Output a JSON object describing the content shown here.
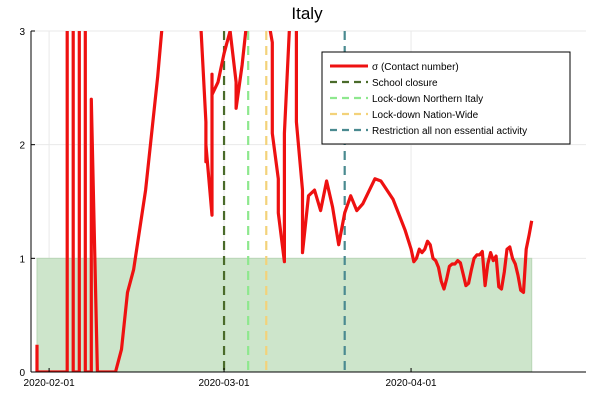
{
  "chart_data": {
    "type": "line",
    "title": "Italy",
    "xlabel": "",
    "ylabel": "",
    "x_domain": [
      "2020-01-29",
      "2020-04-30"
    ],
    "ylim": [
      0,
      3
    ],
    "y_ticks": [
      0,
      1,
      2,
      3
    ],
    "x_ticks": [
      {
        "date": "2020-02-01",
        "label": "2020-02-01"
      },
      {
        "date": "2020-03-01",
        "label": "2020-03-01"
      },
      {
        "date": "2020-04-01",
        "label": "2020-04-01"
      }
    ],
    "grid": true,
    "legend_position": "top-right",
    "threshold_band": {
      "from": 0,
      "to": 1,
      "x_from": "2020-01-30",
      "x_to": "2020-04-21",
      "color": "#cde5cb"
    },
    "series": [
      {
        "name": "σ (Contact number)",
        "color": "#ee1111",
        "style": "solid",
        "points": [
          [
            "2020-01-30",
            0.24
          ],
          [
            "2020-01-30",
            0.0
          ],
          [
            "2020-02-04",
            0.0
          ],
          [
            "2020-02-04",
            3.2
          ],
          [
            "2020-02-05",
            3.2
          ],
          [
            "2020-02-05",
            0.0
          ],
          [
            "2020-02-06",
            0.0
          ],
          [
            "2020-02-06",
            3.2
          ],
          [
            "2020-02-07",
            3.2
          ],
          [
            "2020-02-07",
            0.0
          ],
          [
            "2020-02-08",
            0.0
          ],
          [
            "2020-02-08",
            2.4
          ],
          [
            "2020-02-09",
            0.0
          ],
          [
            "2020-02-12",
            0.0
          ],
          [
            "2020-02-13",
            0.2
          ],
          [
            "2020-02-14",
            0.7
          ],
          [
            "2020-02-15",
            0.9
          ],
          [
            "2020-02-17",
            1.6
          ],
          [
            "2020-02-19",
            2.6
          ],
          [
            "2020-02-20",
            3.2
          ],
          [
            "2020-02-26",
            3.2
          ],
          [
            "2020-02-27",
            2.2
          ],
          [
            "2020-02-27",
            1.85
          ],
          [
            "2020-02-27",
            2.0
          ],
          [
            "2020-02-28",
            1.38
          ],
          [
            "2020-02-28",
            2.62
          ],
          [
            "2020-02-28",
            2.44
          ],
          [
            "2020-02-29",
            2.55
          ],
          [
            "2020-03-01",
            2.8
          ],
          [
            "2020-03-02",
            3.0
          ],
          [
            "2020-03-03",
            2.55
          ],
          [
            "2020-03-03",
            2.32
          ],
          [
            "2020-03-04",
            2.7
          ],
          [
            "2020-03-05",
            3.2
          ],
          [
            "2020-03-08",
            3.2
          ],
          [
            "2020-03-09",
            2.9
          ],
          [
            "2020-03-09",
            2.1
          ],
          [
            "2020-03-10",
            1.7
          ],
          [
            "2020-03-10",
            1.4
          ],
          [
            "2020-03-11",
            0.97
          ],
          [
            "2020-03-11",
            2.1
          ],
          [
            "2020-03-12",
            3.2
          ],
          [
            "2020-03-13",
            3.2
          ],
          [
            "2020-03-13",
            2.2
          ],
          [
            "2020-03-14",
            1.6
          ],
          [
            "2020-03-14",
            1.05
          ],
          [
            "2020-03-15",
            1.55
          ],
          [
            "2020-03-16",
            1.6
          ],
          [
            "2020-03-17",
            1.42
          ],
          [
            "2020-03-18",
            1.68
          ],
          [
            "2020-03-19",
            1.45
          ],
          [
            "2020-03-20",
            1.12
          ],
          [
            "2020-03-21",
            1.4
          ],
          [
            "2020-03-22",
            1.55
          ],
          [
            "2020-03-23",
            1.42
          ],
          [
            "2020-03-24",
            1.48
          ],
          [
            "2020-03-26",
            1.7
          ],
          [
            "2020-03-27",
            1.68
          ],
          [
            "2020-03-29",
            1.52
          ],
          [
            "2020-03-31",
            1.25
          ],
          [
            "2020-04-01",
            1.08
          ],
          [
            "2020-04-02",
            0.97
          ],
          [
            "2020-04-03",
            1.0
          ],
          [
            "2020-04-04",
            1.08
          ],
          [
            "2020-04-05",
            1.05
          ],
          [
            "2020-04-06",
            1.08
          ],
          [
            "2020-04-07",
            1.15
          ],
          [
            "2020-04-08",
            1.12
          ],
          [
            "2020-04-09",
            1.0
          ],
          [
            "2020-04-10",
            0.98
          ],
          [
            "2020-04-11",
            0.92
          ],
          [
            "2020-04-12",
            0.8
          ],
          [
            "2020-04-13",
            0.73
          ],
          [
            "2020-04-14",
            0.82
          ],
          [
            "2020-04-15",
            0.93
          ],
          [
            "2020-04-16",
            0.95
          ],
          [
            "2020-04-17",
            0.95
          ],
          [
            "2020-04-18",
            0.98
          ],
          [
            "2020-04-19",
            0.96
          ],
          [
            "2020-04-20",
            0.86
          ],
          [
            "2020-04-21",
            0.76
          ],
          [
            "2020-04-22",
            0.78
          ],
          [
            "2020-04-23",
            0.9
          ],
          [
            "2020-04-24",
            1.0
          ],
          [
            "2020-04-25",
            1.03
          ],
          [
            "2020-04-26",
            1.03
          ],
          [
            "2020-04-26",
            1.06
          ],
          [
            "2020-04-27",
            0.76
          ],
          [
            "2020-04-28",
            0.95
          ],
          [
            "2020-04-29",
            1.05
          ],
          [
            "2020-04-30",
            0.98
          ],
          [
            "2020-04-30",
            1.02
          ],
          [
            "2020-04-30",
            0.75
          ],
          [
            "2020-04-30",
            0.73
          ],
          [
            "2020-04-30",
            0.88
          ],
          [
            "2020-04-30",
            1.08
          ],
          [
            "2020-04-30",
            1.1
          ],
          [
            "2020-04-30",
            1.0
          ],
          [
            "2020-04-30",
            0.95
          ],
          [
            "2020-04-30",
            0.85
          ],
          [
            "2020-04-30",
            0.72
          ],
          [
            "2020-04-30",
            0.7
          ],
          [
            "2020-04-30",
            1.08
          ],
          [
            "2020-04-30",
            1.2
          ],
          [
            "2020-04-30",
            1.33
          ]
        ]
      }
    ],
    "events": [
      {
        "name": "School closure",
        "date": "2020-03-01",
        "color": "#4a6b2a"
      },
      {
        "name": "Lock-down Northern Italy",
        "date": "2020-03-05",
        "color": "#8ee88e"
      },
      {
        "name": "Lock-down Nation-Wide",
        "date": "2020-03-08",
        "color": "#f3d27a"
      },
      {
        "name": "Restriction all non essential activity",
        "date": "2020-03-21",
        "color": "#4a8a90"
      }
    ]
  }
}
